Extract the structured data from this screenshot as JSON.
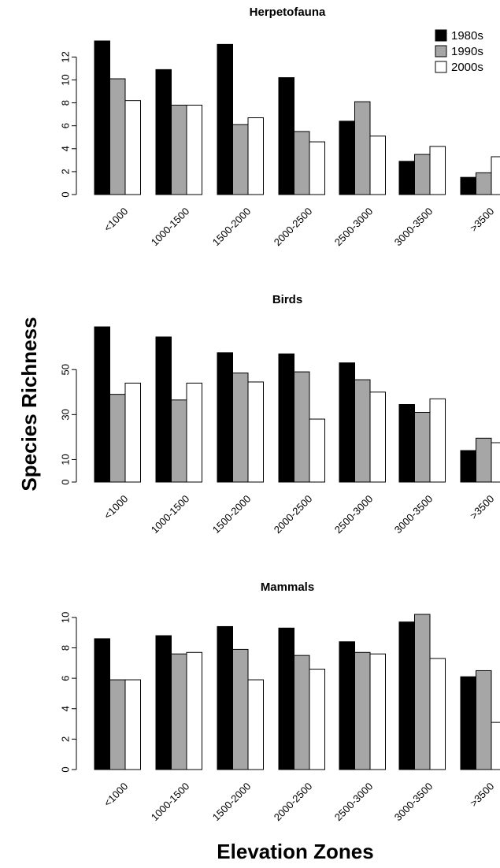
{
  "figure": {
    "ylabel": "Species Richness",
    "xlabel": "Elevation Zones"
  },
  "legend": [
    "1980s",
    "1990s",
    "2000s"
  ],
  "colors": {
    "1980s": "#000000",
    "1990s": "#a6a6a6",
    "2000s": "#ffffff"
  },
  "chart_data": [
    {
      "type": "bar",
      "title": "Herpetofauna",
      "categories": [
        "<1000",
        "1000-1500",
        "1500-2000",
        "2000-2500",
        "2500-3000",
        "3000-3500",
        ">3500"
      ],
      "series": [
        {
          "name": "1980s",
          "values": [
            13.4,
            10.9,
            13.1,
            10.2,
            6.4,
            2.9,
            1.5
          ]
        },
        {
          "name": "1990s",
          "values": [
            10.1,
            7.8,
            6.1,
            5.5,
            8.1,
            3.5,
            1.9
          ]
        },
        {
          "name": "2000s",
          "values": [
            8.2,
            7.8,
            6.7,
            4.6,
            5.1,
            4.2,
            3.3
          ]
        }
      ],
      "yticks": [
        0,
        2,
        4,
        6,
        8,
        10,
        12
      ],
      "ylim": [
        0,
        13.4
      ],
      "legend_position": "top-right"
    },
    {
      "type": "bar",
      "title": "Birds",
      "categories": [
        "<1000",
        "1000-1500",
        "1500-2000",
        "2000-2500",
        "2500-3000",
        "3000-3500",
        ">3500"
      ],
      "series": [
        {
          "name": "1980s",
          "values": [
            69,
            64.5,
            57.5,
            57,
            53,
            34.5,
            14
          ]
        },
        {
          "name": "1990s",
          "values": [
            39,
            36.5,
            48.5,
            49,
            45.5,
            31,
            19.5
          ]
        },
        {
          "name": "2000s",
          "values": [
            44,
            44,
            44.5,
            28,
            40,
            37,
            17.5
          ]
        }
      ],
      "yticks": [
        0,
        10,
        30,
        50
      ],
      "ylim": [
        0,
        69
      ]
    },
    {
      "type": "bar",
      "title": "Mammals",
      "categories": [
        "<1000",
        "1000-1500",
        "1500-2000",
        "2000-2500",
        "2500-3000",
        "3000-3500",
        ">3500"
      ],
      "series": [
        {
          "name": "1980s",
          "values": [
            8.6,
            8.8,
            9.4,
            9.3,
            8.4,
            9.7,
            6.1
          ]
        },
        {
          "name": "1990s",
          "values": [
            5.9,
            7.6,
            7.9,
            7.5,
            7.7,
            10.2,
            6.5
          ]
        },
        {
          "name": "2000s",
          "values": [
            5.9,
            7.7,
            5.9,
            6.6,
            7.6,
            7.3,
            3.1
          ]
        }
      ],
      "yticks": [
        0,
        2,
        4,
        6,
        8,
        10
      ],
      "ylim": [
        0,
        10.2
      ]
    }
  ]
}
